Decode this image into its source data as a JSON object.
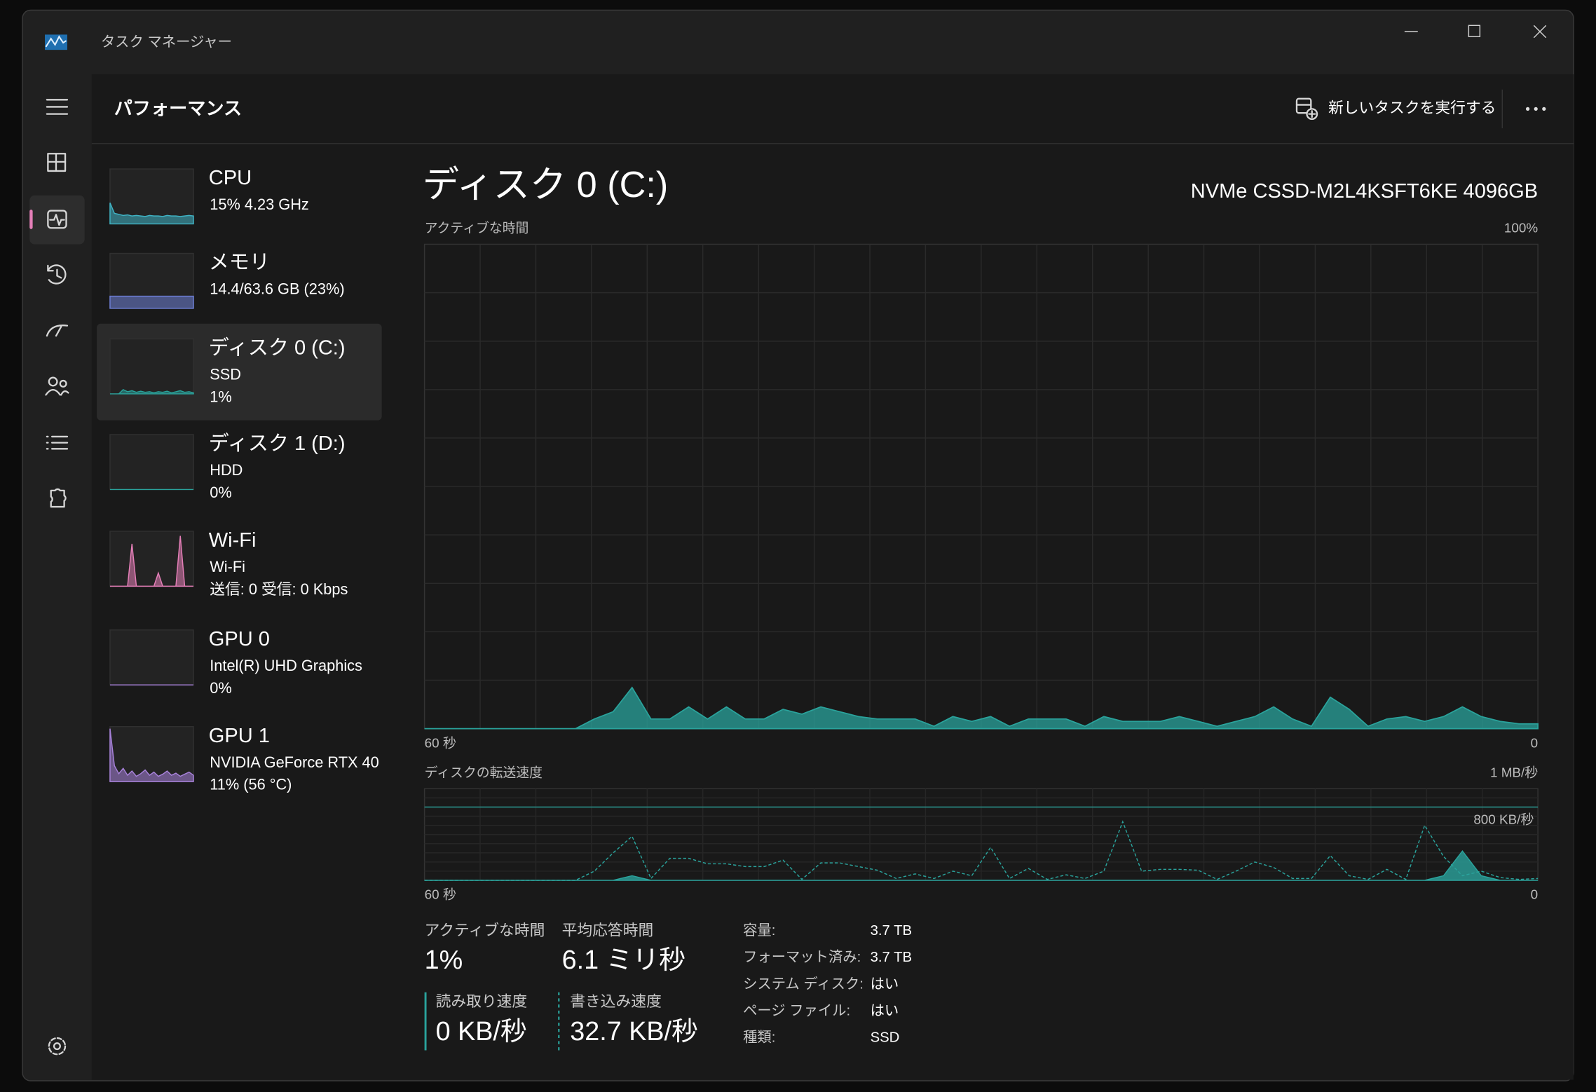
{
  "window": {
    "title": "タスク マネージャー"
  },
  "header": {
    "title": "パフォーマンス",
    "run_new_task": "新しいタスクを実行する"
  },
  "devices": [
    {
      "name": "CPU",
      "line1": "15%  4.23 GHz",
      "color": "#3fb3c4",
      "history": [
        40,
        20,
        18,
        16,
        17,
        15,
        16,
        15,
        14,
        16,
        15,
        15,
        14,
        16,
        15,
        15,
        14,
        15,
        16,
        15
      ]
    },
    {
      "name": "メモリ",
      "line1": "14.4/63.6 GB (23%)",
      "color": "#6d7fd6",
      "history": [
        23,
        23,
        23,
        23,
        23,
        23,
        23,
        23,
        23,
        23,
        23,
        23,
        23,
        23,
        23,
        23,
        23,
        23,
        23,
        23
      ]
    },
    {
      "name": "ディスク 0 (C:)",
      "line1": "SSD",
      "line2": "1%",
      "color": "#2aa39c",
      "history": [
        0,
        0,
        0,
        8,
        4,
        6,
        3,
        5,
        3,
        4,
        2,
        4,
        3,
        5,
        2,
        4,
        6,
        3,
        4,
        2
      ]
    },
    {
      "name": "ディスク 1 (D:)",
      "line1": "HDD",
      "line2": "0%",
      "color": "#2aa39c",
      "history": [
        0,
        0,
        0,
        0,
        0,
        0,
        0,
        0,
        0,
        0,
        0,
        0,
        0,
        0,
        0,
        0,
        0,
        0,
        0,
        0
      ]
    },
    {
      "name": "Wi-Fi",
      "line1": "Wi-Fi",
      "line2": "送信: 0 受信: 0 Kbps",
      "color": "#e57fb8",
      "history": [
        0,
        0,
        0,
        0,
        0,
        80,
        0,
        0,
        0,
        0,
        0,
        25,
        0,
        0,
        0,
        0,
        95,
        0,
        0,
        0
      ]
    },
    {
      "name": "GPU 0",
      "line1": "Intel(R) UHD Graphics",
      "line2": "0%",
      "color": "#a882db",
      "history": [
        0,
        0,
        0,
        0,
        0,
        0,
        0,
        0,
        0,
        0,
        0,
        0,
        0,
        0,
        0,
        0,
        0,
        0,
        0,
        0
      ]
    },
    {
      "name": "GPU 1",
      "line1": "NVIDIA GeForce RTX 40",
      "line2": "11% (56 °C)",
      "color": "#a882db",
      "history": [
        100,
        30,
        15,
        25,
        12,
        20,
        10,
        15,
        22,
        12,
        18,
        10,
        14,
        20,
        12,
        16,
        10,
        14,
        18,
        12
      ]
    }
  ],
  "detail": {
    "title": "ディスク 0 (C:)",
    "model": "NVMe CSSD-M2L4KSFT6KE 4096GB",
    "active_chart": {
      "label": "アクティブな時間",
      "max_label": "100%",
      "x_left": "60 秒",
      "x_right": "0",
      "color": "#2aa39c",
      "ylim": [
        0,
        100
      ],
      "values": [
        0,
        0,
        0,
        0,
        0,
        0,
        0,
        0,
        0,
        2,
        3.5,
        8.5,
        2,
        2,
        4.5,
        2,
        4.5,
        2,
        2,
        4,
        3,
        4.5,
        3.5,
        2.5,
        2,
        2,
        2,
        0.5,
        2.5,
        1.5,
        2.5,
        0.5,
        2,
        2,
        2,
        0.5,
        2.5,
        1.5,
        1.5,
        1.5,
        2.5,
        1.5,
        0.5,
        1.5,
        2.5,
        4.5,
        2,
        0.5,
        6.5,
        4,
        0.5,
        2,
        2.5,
        1.5,
        2.5,
        4.5,
        2.5,
        1.5,
        1,
        1
      ]
    },
    "transfer_chart": {
      "label": "ディスクの転送速度",
      "max_label": "1 MB/秒",
      "x_left": "60 秒",
      "x_right": "0",
      "color": "#2aa39c",
      "ylim": [
        0,
        1000
      ],
      "ref_line": {
        "value": 800,
        "label": "800 KB/秒"
      },
      "read": [
        0,
        0,
        0,
        0,
        0,
        0,
        0,
        0,
        0,
        0,
        0,
        50,
        0,
        0,
        0,
        0,
        0,
        0,
        0,
        0,
        0,
        0,
        0,
        0,
        0,
        0,
        0,
        0,
        0,
        0,
        0,
        0,
        0,
        0,
        0,
        0,
        0,
        0,
        0,
        0,
        0,
        0,
        0,
        0,
        0,
        0,
        0,
        0,
        0,
        0,
        0,
        0,
        0,
        0,
        50,
        320,
        50,
        0,
        0,
        0
      ],
      "write": [
        0,
        0,
        0,
        0,
        0,
        0,
        0,
        0,
        0,
        100,
        300,
        480,
        20,
        240,
        240,
        180,
        180,
        150,
        150,
        220,
        10,
        190,
        190,
        150,
        110,
        20,
        70,
        20,
        100,
        50,
        360,
        20,
        130,
        10,
        60,
        20,
        100,
        640,
        100,
        120,
        120,
        110,
        10,
        100,
        200,
        140,
        20,
        20,
        270,
        50,
        10,
        120,
        10,
        600,
        260,
        50,
        100,
        30,
        10,
        20
      ]
    },
    "stats": [
      {
        "label": "アクティブな時間",
        "value": "1%"
      },
      {
        "label": "平均応答時間",
        "value": "6.1 ミリ秒"
      },
      {
        "label": "読み取り速度",
        "value": "0 KB/秒"
      },
      {
        "label": "書き込み速度",
        "value": "32.7 KB/秒"
      }
    ],
    "properties": [
      {
        "label": "容量:",
        "value": "3.7 TB"
      },
      {
        "label": "フォーマット済み:",
        "value": "3.7 TB"
      },
      {
        "label": "システム ディスク:",
        "value": "はい"
      },
      {
        "label": "ページ ファイル:",
        "value": "はい"
      },
      {
        "label": "種類:",
        "value": "SSD"
      }
    ]
  }
}
